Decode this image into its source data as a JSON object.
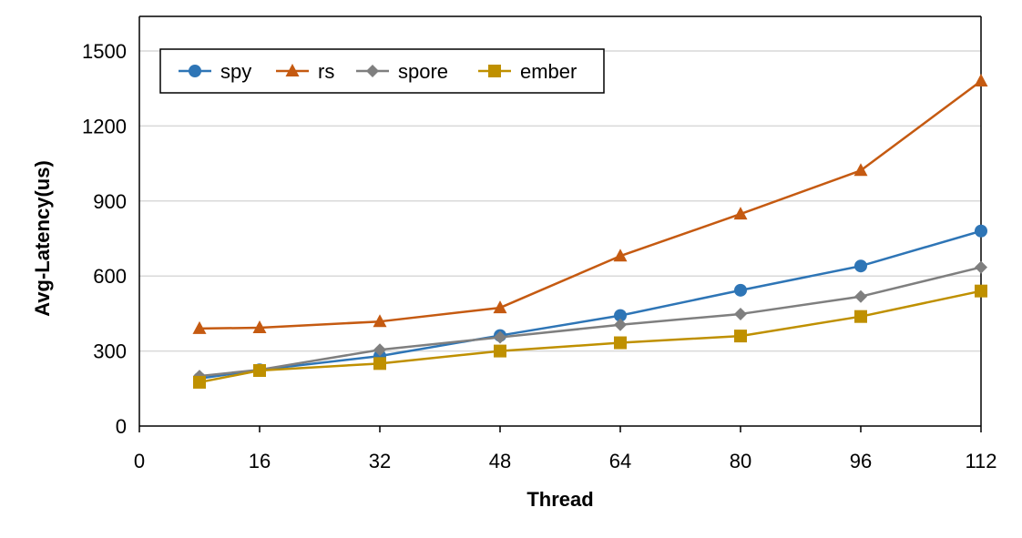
{
  "chart_data": {
    "type": "line",
    "title": "",
    "xlabel": "Thread",
    "ylabel": "Avg-Latency(us)",
    "xlim": [
      0,
      112
    ],
    "ylim": [
      0,
      1500
    ],
    "x_ticks": [
      0,
      16,
      32,
      48,
      64,
      80,
      96,
      112
    ],
    "y_ticks": [
      0,
      300,
      600,
      900,
      1200,
      1500
    ],
    "x": [
      8,
      16,
      32,
      48,
      64,
      80,
      96,
      112
    ],
    "grid": "horizontal",
    "legend": "top-left",
    "series": [
      {
        "name": "spy",
        "color": "#2E75B6",
        "marker": "circle",
        "values": [
          190,
          225,
          280,
          362,
          442,
          543,
          640,
          780
        ]
      },
      {
        "name": "rs",
        "color": "#C55A11",
        "marker": "triangle",
        "values": [
          390,
          393,
          418,
          473,
          680,
          848,
          1022,
          1380
        ]
      },
      {
        "name": "spore",
        "color": "#7F7F7F",
        "marker": "diamond",
        "values": [
          200,
          225,
          305,
          355,
          405,
          448,
          518,
          635
        ]
      },
      {
        "name": "ember",
        "color": "#BF9000",
        "marker": "square",
        "values": [
          175,
          222,
          250,
          300,
          333,
          360,
          438,
          540
        ]
      }
    ]
  }
}
